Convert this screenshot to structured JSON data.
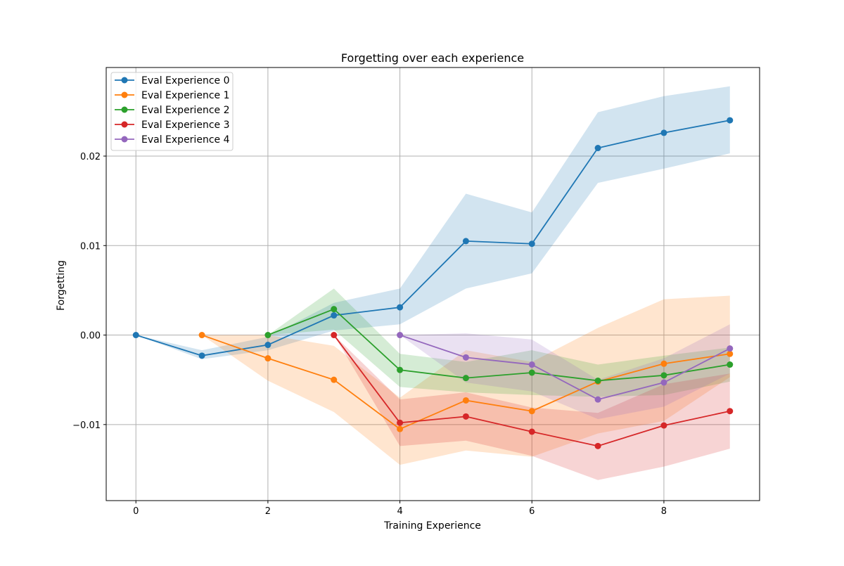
{
  "chart_data": {
    "type": "line",
    "title": "Forgetting over each experience",
    "xlabel": "Training Experience",
    "ylabel": "Forgetting",
    "xlim": [
      -0.45,
      9.45
    ],
    "ylim": [
      -0.0185,
      0.0299
    ],
    "x_ticks": [
      0,
      2,
      4,
      6,
      8
    ],
    "x_tick_labels": [
      "0",
      "2",
      "4",
      "6",
      "8"
    ],
    "y_ticks": [
      -0.01,
      0.0,
      0.01,
      0.02
    ],
    "y_tick_labels": [
      "−0.01",
      "0.00",
      "0.01",
      "0.02"
    ],
    "grid": true,
    "legend_position": "top-left",
    "series": [
      {
        "name": "Eval Experience 0",
        "color": "#1f77b4",
        "x": [
          0,
          1,
          2,
          3,
          4,
          5,
          6,
          7,
          8,
          9
        ],
        "y": [
          0.0,
          -0.0023,
          -0.0011,
          0.0022,
          0.0031,
          0.0105,
          0.0102,
          0.0209,
          0.0226,
          0.024
        ],
        "lower": [
          0.0,
          -0.0027,
          -0.0017,
          0.0005,
          0.0012,
          0.0052,
          0.0069,
          0.017,
          0.0186,
          0.0203
        ],
        "upper": [
          0.0,
          -0.0017,
          -0.0002,
          0.0036,
          0.0052,
          0.0158,
          0.0137,
          0.0249,
          0.0267,
          0.0278
        ]
      },
      {
        "name": "Eval Experience 1",
        "color": "#ff7f0e",
        "x": [
          1,
          2,
          3,
          4,
          5,
          6,
          7,
          8,
          9
        ],
        "y": [
          0.0,
          -0.0026,
          -0.005,
          -0.0105,
          -0.0073,
          -0.0085,
          -0.0052,
          -0.0032,
          -0.0021
        ],
        "lower": [
          0.0,
          -0.0051,
          -0.0086,
          -0.0145,
          -0.0129,
          -0.0136,
          -0.011,
          -0.0096,
          -0.0047
        ],
        "upper": [
          0.0,
          0.0,
          -0.0012,
          -0.007,
          -0.0017,
          -0.003,
          0.0008,
          0.004,
          0.0044
        ]
      },
      {
        "name": "Eval Experience 2",
        "color": "#2ca02c",
        "x": [
          2,
          3,
          4,
          5,
          6,
          7,
          8,
          9
        ],
        "y": [
          0.0,
          0.0029,
          -0.0039,
          -0.0048,
          -0.0042,
          -0.0051,
          -0.0045,
          -0.0033
        ],
        "lower": [
          0.0,
          0.0006,
          -0.0058,
          -0.0064,
          -0.0067,
          -0.0069,
          -0.0067,
          -0.0052
        ],
        "upper": [
          0.0,
          0.0052,
          -0.0021,
          -0.003,
          -0.0017,
          -0.0033,
          -0.0023,
          -0.0014
        ]
      },
      {
        "name": "Eval Experience 3",
        "color": "#d62728",
        "x": [
          3,
          4,
          5,
          6,
          7,
          8,
          9
        ],
        "y": [
          0.0,
          -0.0098,
          -0.0091,
          -0.0108,
          -0.0124,
          -0.0101,
          -0.0085
        ],
        "lower": [
          0.0,
          -0.0124,
          -0.0118,
          -0.0135,
          -0.0162,
          -0.0147,
          -0.0127
        ],
        "upper": [
          0.0,
          -0.0072,
          -0.0064,
          -0.0081,
          -0.0087,
          -0.0055,
          -0.0043
        ]
      },
      {
        "name": "Eval Experience 4",
        "color": "#9467bd",
        "x": [
          4,
          5,
          6,
          7,
          8,
          9
        ],
        "y": [
          0.0,
          -0.0025,
          -0.0033,
          -0.0072,
          -0.0053,
          -0.0015
        ],
        "lower": [
          0.0,
          -0.0053,
          -0.0063,
          -0.0094,
          -0.008,
          -0.0043
        ],
        "upper": [
          0.0,
          0.0002,
          -0.0005,
          -0.005,
          -0.0026,
          0.0012
        ]
      }
    ]
  }
}
